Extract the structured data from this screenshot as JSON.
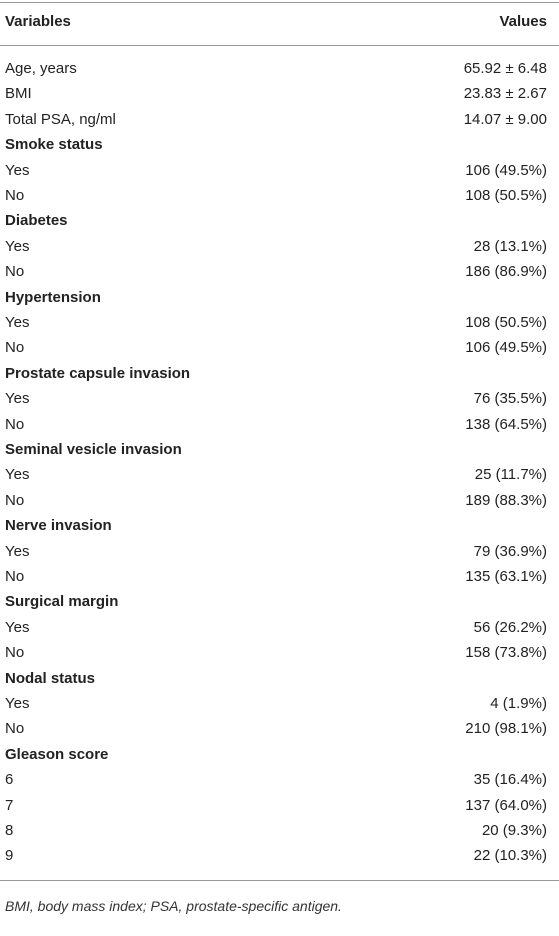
{
  "table": {
    "header": [
      "Variables",
      "Values"
    ],
    "rows": [
      {
        "label": "Age, years",
        "value": "65.92 ± 6.48"
      },
      {
        "label": "BMI",
        "value": "23.83 ± 2.67"
      },
      {
        "label": "Total PSA, ng/ml",
        "value": "14.07 ± 9.00"
      },
      {
        "label": "Smoke status"
      },
      {
        "label": "Yes",
        "value": "106 (49.5%)"
      },
      {
        "label": "No",
        "value": "108 (50.5%)"
      },
      {
        "label": "Diabetes"
      },
      {
        "label": "Yes",
        "value": "28 (13.1%)"
      },
      {
        "label": "No",
        "value": "186 (86.9%)"
      },
      {
        "label": "Hypertension"
      },
      {
        "label": "Yes",
        "value": "108 (50.5%)"
      },
      {
        "label": "No",
        "value": "106 (49.5%)"
      },
      {
        "label": "Prostate capsule invasion"
      },
      {
        "label": "Yes",
        "value": "76 (35.5%)"
      },
      {
        "label": "No",
        "value": "138 (64.5%)"
      },
      {
        "label": "Seminal vesicle invasion"
      },
      {
        "label": "Yes",
        "value": "25 (11.7%)"
      },
      {
        "label": "No",
        "value": "189 (88.3%)"
      },
      {
        "label": "Nerve invasion"
      },
      {
        "label": "Yes",
        "value": "79 (36.9%)"
      },
      {
        "label": "No",
        "value": "135 (63.1%)"
      },
      {
        "label": "Surgical margin"
      },
      {
        "label": "Yes",
        "value": "56 (26.2%)"
      },
      {
        "label": "No",
        "value": "158 (73.8%)"
      },
      {
        "label": "Nodal status"
      },
      {
        "label": "Yes",
        "value": "4 (1.9%)"
      },
      {
        "label": "No",
        "value": "210 (98.1%)"
      },
      {
        "label": "Gleason score"
      },
      {
        "label": "6",
        "value": "35 (16.4%)"
      },
      {
        "label": "7",
        "value": "137 (64.0%)"
      },
      {
        "label": "8",
        "value": "20 (9.3%)"
      },
      {
        "label": "9",
        "value": "22 (10.3%)"
      }
    ]
  },
  "footnote": "BMI, body mass index; PSA, prostate-specific antigen."
}
